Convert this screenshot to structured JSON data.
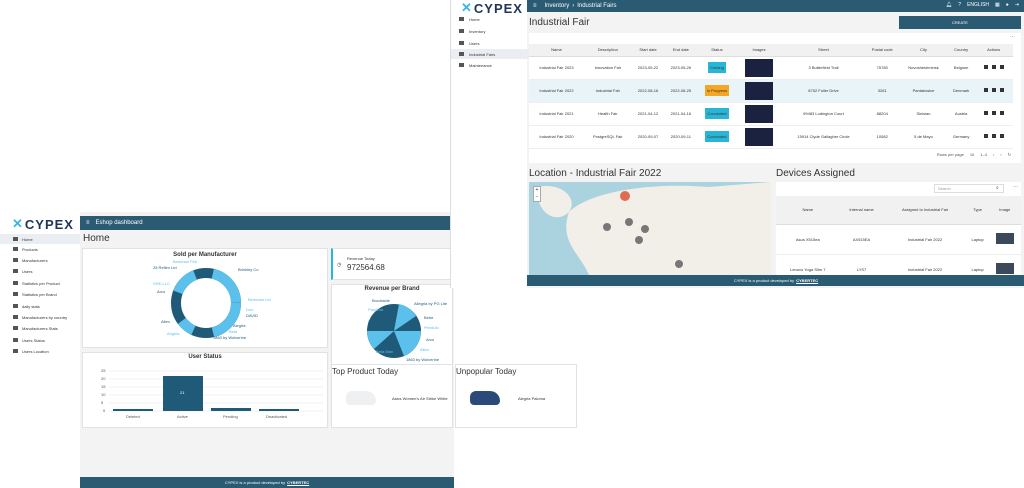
{
  "eshop": {
    "brand": "CYPEX",
    "topbar_title": "Eshop dashboard",
    "page_title": "Home",
    "sidebar": [
      "Home",
      "Products",
      "Manufacturers",
      "Users",
      "Statistics per Product",
      "Statistics per Brand",
      "daily stats",
      "Manufacturers by country",
      "Manufacturers Stats",
      "Users Status",
      "Users Location"
    ],
    "sold_per_manufacturer": {
      "title": "Sold per Manufacturer",
      "labels": [
        "Brinkley Co",
        "Zit Reflex Ltd",
        "Berkman Feb",
        "Berkman Ltd",
        "Duo",
        "DAVID",
        "Alegria",
        "Beta",
        "1863 by Wolverine",
        "Angela",
        "Allen",
        "Arco",
        "SHE-LLC"
      ]
    },
    "revenue_today": {
      "label": "Revenue Today",
      "value": "972564.68"
    },
    "revenue_per_brand": {
      "title": "Revenue per Brand",
      "labels": [
        "Allegria by PG Lite",
        "Bebe",
        "Pendulo",
        "Brookside",
        "Zit Reflex Ltd",
        "Beta Max",
        "Pandora",
        "1863 by Wolverine",
        "Arco",
        "Allen"
      ]
    },
    "user_status": {
      "title": "User Status",
      "y_ticks": [
        "25",
        "20",
        "15",
        "10",
        "5",
        "0"
      ],
      "bar_value": "21"
    },
    "top_product": {
      "title": "Top Product Today",
      "name": "Asics Women's Air Strike White"
    },
    "unpopular": {
      "title": "Unpopular Today",
      "name": "Alegria Paloma"
    },
    "footer_text": "CYPEX is a product developed by",
    "footer_brand": "CYBERTEC"
  },
  "inventory": {
    "brand": "CYPEX",
    "breadcrumb_root": "Inventory",
    "breadcrumb_page": "Industrial Fairs",
    "language": "ENGLISH",
    "sidebar": [
      "Home",
      "Inventory",
      "Users",
      "Industrial Fairs",
      "Maintenance"
    ],
    "page_title": "Industrial Fair",
    "create_label": "CREATE",
    "columns": [
      "Name",
      "Description",
      "Start date",
      "End date",
      "Status",
      "Images",
      "Street",
      "Postal code",
      "City",
      "Country",
      "Actions"
    ],
    "rows": [
      {
        "name": "Industrial Fair 2023",
        "description": "Innovation Fair",
        "start": "2023-05-22",
        "end": "2023-05-26",
        "status": "Coming",
        "street": "3 Butterfield Trail",
        "postal": "75780",
        "city": "Novosheshminsk",
        "country": "Belgium"
      },
      {
        "name": "Industrial Fair 2022",
        "description": "Industrial Fair",
        "start": "2022-08-16",
        "end": "2022-08-25",
        "status": "In Progress",
        "street": "8752 Fuller Drive",
        "postal": "3261",
        "city": "Pantatowice",
        "country": "Denmark"
      },
      {
        "name": "Industrial Fair 2021",
        "description": "Health Fair",
        "start": "2021-04-12",
        "end": "2021-04-16",
        "status": "Concluded",
        "street": "99483 Ludington Court",
        "postal": "88204",
        "city": "Sinisian",
        "country": "Austria"
      },
      {
        "name": "Industrial Fair 2020",
        "description": "PostgreSQL Fair",
        "start": "2020-09-07",
        "end": "2020-09-11",
        "status": "Concluded",
        "street": "15914 Clyde Gallagher Circle",
        "postal": "10582",
        "city": "5 de Mayo",
        "country": "Germany"
      }
    ],
    "pagination": {
      "rows_label": "Rows per page",
      "rows_value": "10",
      "range": "1–4"
    },
    "status_colors": {
      "Coming": "#29b6d6",
      "In Progress": "#f5a623",
      "Concluded": "#29b6d6"
    },
    "location_title": "Location - Industrial Fair 2022",
    "devices": {
      "title": "Devices Assigned",
      "search_placeholder": "Search",
      "columns": [
        "Name",
        "Internal name",
        "Assigned to Industrial Fair",
        "Type",
        "Image"
      ],
      "rows": [
        {
          "name": "Asus X515ea",
          "internal": "AX515EA",
          "fair": "Industrial Fair 2022",
          "type": "Laptop"
        },
        {
          "name": "Lenovo Yoga Slim 7",
          "internal": "LYS7",
          "fair": "Industrial Fair 2022",
          "type": "Laptop"
        }
      ]
    },
    "footer_text": "CYPEX is a product developed by",
    "footer_brand": "CYBERTEC"
  },
  "colors": {
    "accent": "#2a5b73",
    "chart_dark": "#1f5b79",
    "chart_light": "#5bc0eb"
  }
}
